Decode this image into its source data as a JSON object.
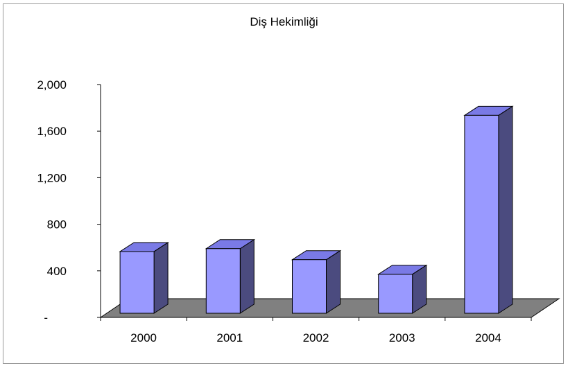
{
  "chart_data": {
    "type": "bar",
    "title": "Diş Hekimliği",
    "xlabel": "",
    "ylabel": "",
    "categories": [
      "2000",
      "2001",
      "2002",
      "2003",
      "2004"
    ],
    "values": [
      530,
      555,
      460,
      335,
      1700
    ],
    "ylim": [
      0,
      2000
    ],
    "yticks": [
      0,
      400,
      800,
      1200,
      1600,
      2000
    ],
    "ytick_labels": [
      "-",
      "400",
      "800",
      "1,200",
      "1,600",
      "2,000"
    ],
    "style": "3d-column",
    "grid": false,
    "legend": "none",
    "colors": {
      "bar_front": "#9999ff",
      "bar_top": "#7a7ae6",
      "bar_side": "#4b4b7f",
      "floor": "#808080",
      "axis": "#000000"
    }
  }
}
